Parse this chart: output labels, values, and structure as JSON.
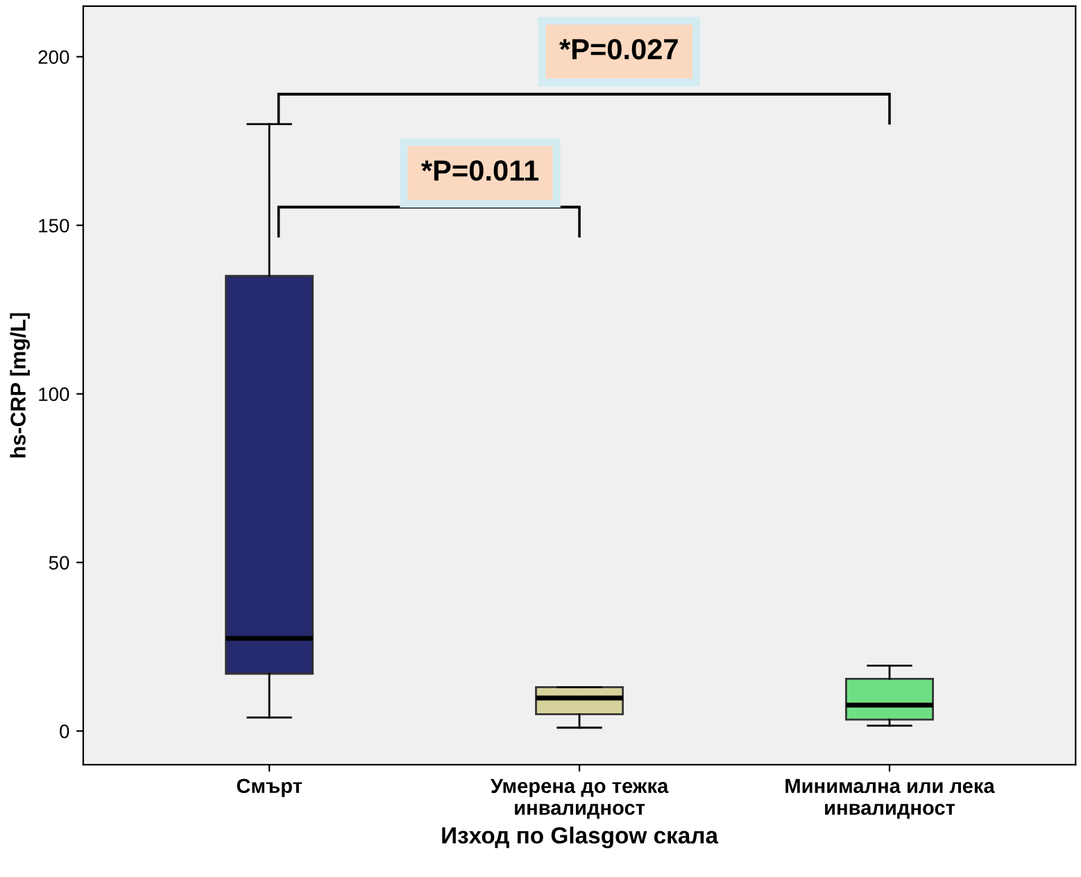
{
  "chart_data": {
    "type": "box",
    "xlabel": "Изход по Glasgow скала",
    "ylabel": "hs-CRP [mg/L]",
    "categories": [
      "Смърт",
      "Умерена до тежка\nинвалидност",
      "Минимална или лека\nинвалидност"
    ],
    "colors": [
      "#262a6e",
      "#d6d29c",
      "#6fdf86"
    ],
    "boxes": [
      {
        "low": 4,
        "q1": 17,
        "median": 27.5,
        "q3": 135,
        "high": 180
      },
      {
        "low": 1,
        "q1": 5,
        "median": 9.8,
        "q3": 13,
        "high": 13
      },
      {
        "low": 1.6,
        "q1": 3.4,
        "median": 7.7,
        "q3": 15.5,
        "high": 19.4
      }
    ],
    "ylim": [
      -10,
      215
    ],
    "yticks": [
      0,
      50,
      100,
      150,
      200
    ],
    "grid": false,
    "annotations": [
      "*P=0.027",
      "*P=0.011"
    ]
  }
}
